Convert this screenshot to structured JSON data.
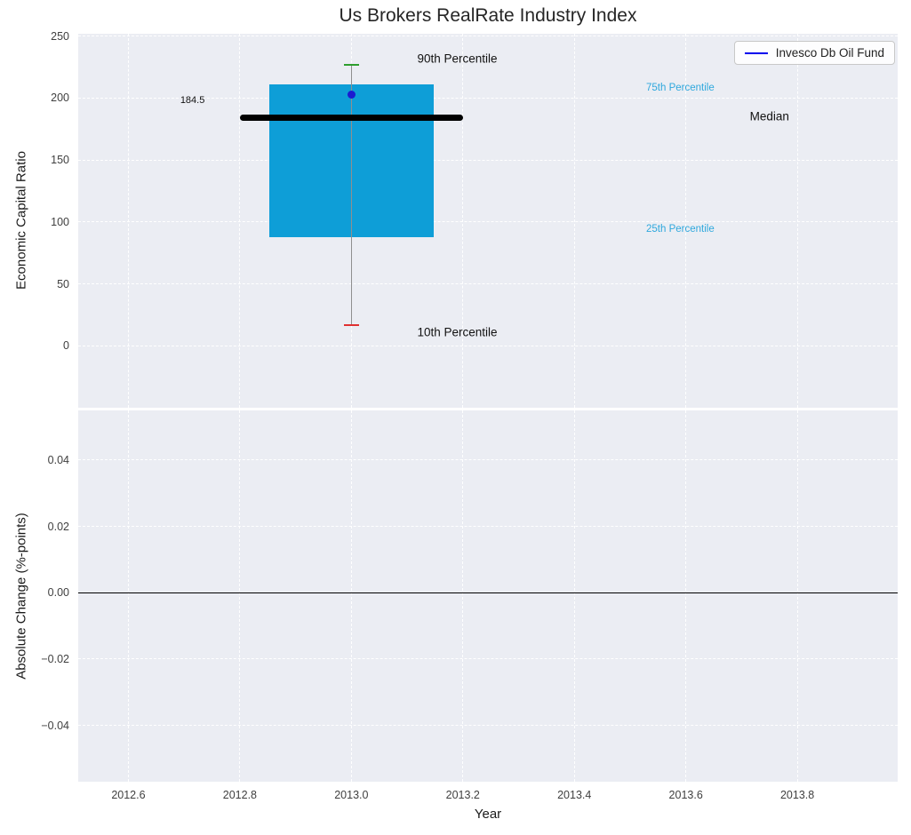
{
  "colors": {
    "plot_bg": "#ebedf3",
    "grid": "#ffffff",
    "box_fill": "#0e9ed7",
    "whisker": "#8f8f8f",
    "cap_top": "#2e9e2e",
    "cap_bottom": "#e03131",
    "median": "#000000",
    "fund_marker": "#1b1bd0",
    "legend_line": "#0000ee",
    "zero_line": "#000000"
  },
  "chart_data": [
    {
      "type": "boxplot",
      "title": "Us Brokers RealRate Industry Index",
      "ylabel": "Economic Capital Ratio",
      "legend": "Invesco Db Oil Fund",
      "xlim": [
        2012.51,
        2013.98
      ],
      "ylim": [
        -50,
        252
      ],
      "yticks": [
        {
          "v": 0,
          "label": "0"
        },
        {
          "v": 50,
          "label": "50"
        },
        {
          "v": 100,
          "label": "100"
        },
        {
          "v": 150,
          "label": "150"
        },
        {
          "v": 200,
          "label": "200"
        },
        {
          "v": 250,
          "label": "250"
        }
      ],
      "xticks": [
        {
          "v": 2012.6
        },
        {
          "v": 2012.8
        },
        {
          "v": 2013.0
        },
        {
          "v": 2013.2
        },
        {
          "v": 2013.4
        },
        {
          "v": 2013.6
        },
        {
          "v": 2013.8
        }
      ],
      "box": {
        "x": 2013.0,
        "box_half_width": 0.1475,
        "median_half_width": 0.2,
        "cap_half_width": 0.014,
        "p10": 17,
        "p25": 88,
        "median": 184.5,
        "p75": 211,
        "p90": 227
      },
      "fund_point": {
        "x": 2013.0,
        "y": 203,
        "name": "Invesco Db Oil Fund"
      },
      "annotations": [
        {
          "text": "184.5",
          "x": 2012.715,
          "y": 198,
          "color": "#111111",
          "size": 11
        },
        {
          "text": "90th Percentile",
          "x": 2013.19,
          "y": 232,
          "color": "#111111",
          "size": 13.5
        },
        {
          "text": "75th Percentile",
          "x": 2013.59,
          "y": 208,
          "color": "#2fa8dd",
          "size": 11.5
        },
        {
          "text": "Median",
          "x": 2013.75,
          "y": 185,
          "color": "#111111",
          "size": 13.5
        },
        {
          "text": "25th Percentile",
          "x": 2013.59,
          "y": 94,
          "color": "#2fa8dd",
          "size": 11.5
        },
        {
          "text": "10th Percentile",
          "x": 2013.19,
          "y": 11,
          "color": "#111111",
          "size": 13.5
        }
      ]
    },
    {
      "type": "line",
      "ylabel": "Absolute Change (%-points)",
      "xlabel": "Year",
      "xlim": [
        2012.51,
        2013.98
      ],
      "ylim": [
        -0.057,
        0.055
      ],
      "yticks": [
        {
          "v": 0.04,
          "label": "0.04"
        },
        {
          "v": 0.02,
          "label": "0.02"
        },
        {
          "v": 0.0,
          "label": "0.00"
        },
        {
          "v": -0.02,
          "label": "−0.02"
        },
        {
          "v": -0.04,
          "label": "−0.04"
        }
      ],
      "xticks": [
        {
          "v": 2012.6,
          "label": "2012.6"
        },
        {
          "v": 2012.8,
          "label": "2012.8"
        },
        {
          "v": 2013.0,
          "label": "2013.0"
        },
        {
          "v": 2013.2,
          "label": "2013.2"
        },
        {
          "v": 2013.4,
          "label": "2013.4"
        },
        {
          "v": 2013.6,
          "label": "2013.6"
        },
        {
          "v": 2013.8,
          "label": "2013.8"
        }
      ],
      "zero_line_y": 0.0
    }
  ]
}
